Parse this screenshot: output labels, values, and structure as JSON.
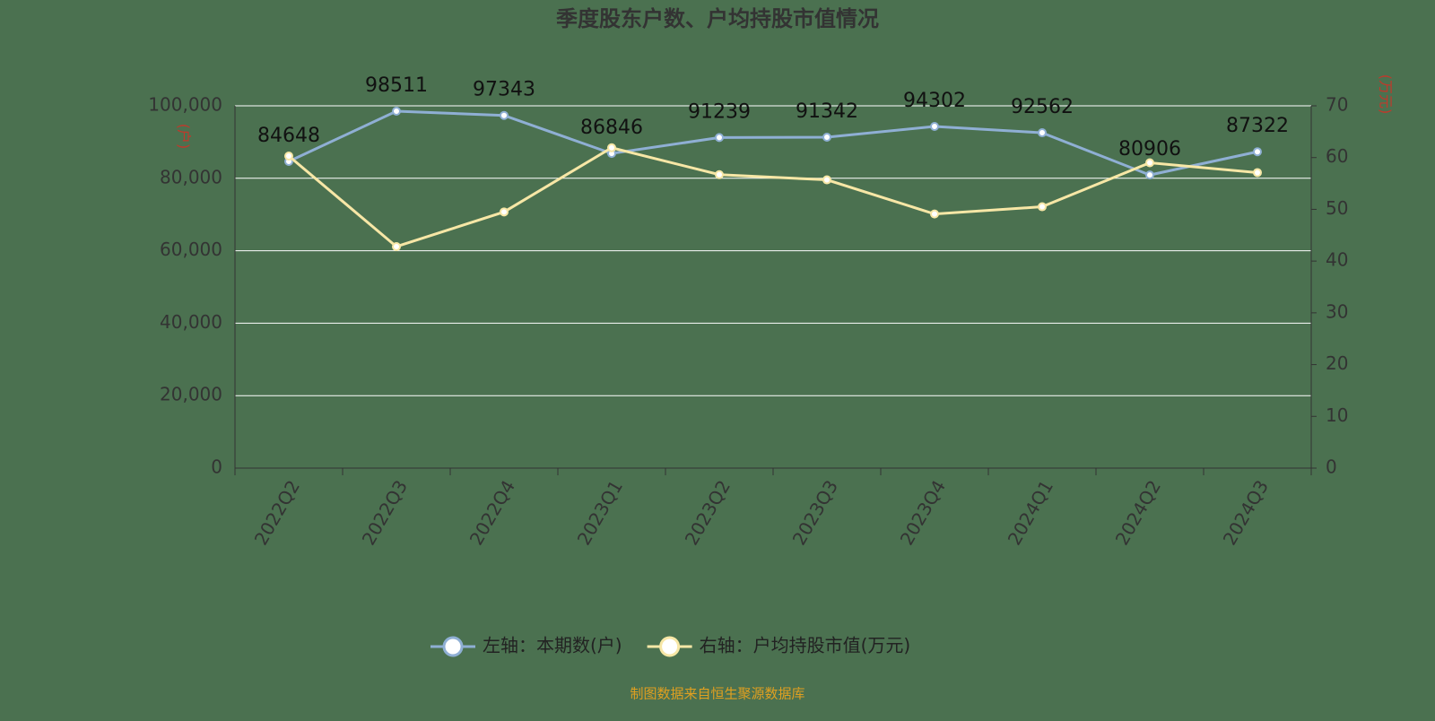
{
  "chart_data": {
    "type": "line",
    "title": "季度股东户数、户均持股市值情况",
    "ylabel": "(户)",
    "y2label": "(万元)",
    "source": "制图数据来自恒生聚源数据库",
    "categories": [
      "2022Q2",
      "2022Q3",
      "2022Q4",
      "2023Q1",
      "2023Q2",
      "2023Q3",
      "2023Q4",
      "2024Q1",
      "2024Q2",
      "2024Q3"
    ],
    "series": [
      {
        "name": "左轴：本期数(户)",
        "color": "#8fafd4",
        "values": [
          84648,
          98511,
          97343,
          86846,
          91239,
          91342,
          94302,
          92562,
          80906,
          87322
        ]
      },
      {
        "name": "右轴：户均持股市值(万元)",
        "color": "#f7e7a6",
        "axis": "y2",
        "values": [
          60.3,
          42.8,
          49.5,
          61.9,
          56.7,
          55.7,
          49.1,
          50.5,
          59.0,
          57.1
        ]
      }
    ],
    "ylim": [
      0,
      100000
    ],
    "yticks": [
      0,
      {
        "value": 20000,
        "label": "20,000"
      },
      {
        "value": 40000,
        "label": "40,000"
      },
      {
        "value": 60000,
        "label": "60,000"
      },
      {
        "value": 80000,
        "label": "80,000"
      },
      {
        "value": 100000,
        "label": "100,000"
      }
    ],
    "y2lim": [
      0,
      70
    ],
    "y2ticks": [
      0,
      10,
      20,
      30,
      40,
      50,
      60,
      70
    ],
    "grid": true,
    "legend": "bottom"
  }
}
